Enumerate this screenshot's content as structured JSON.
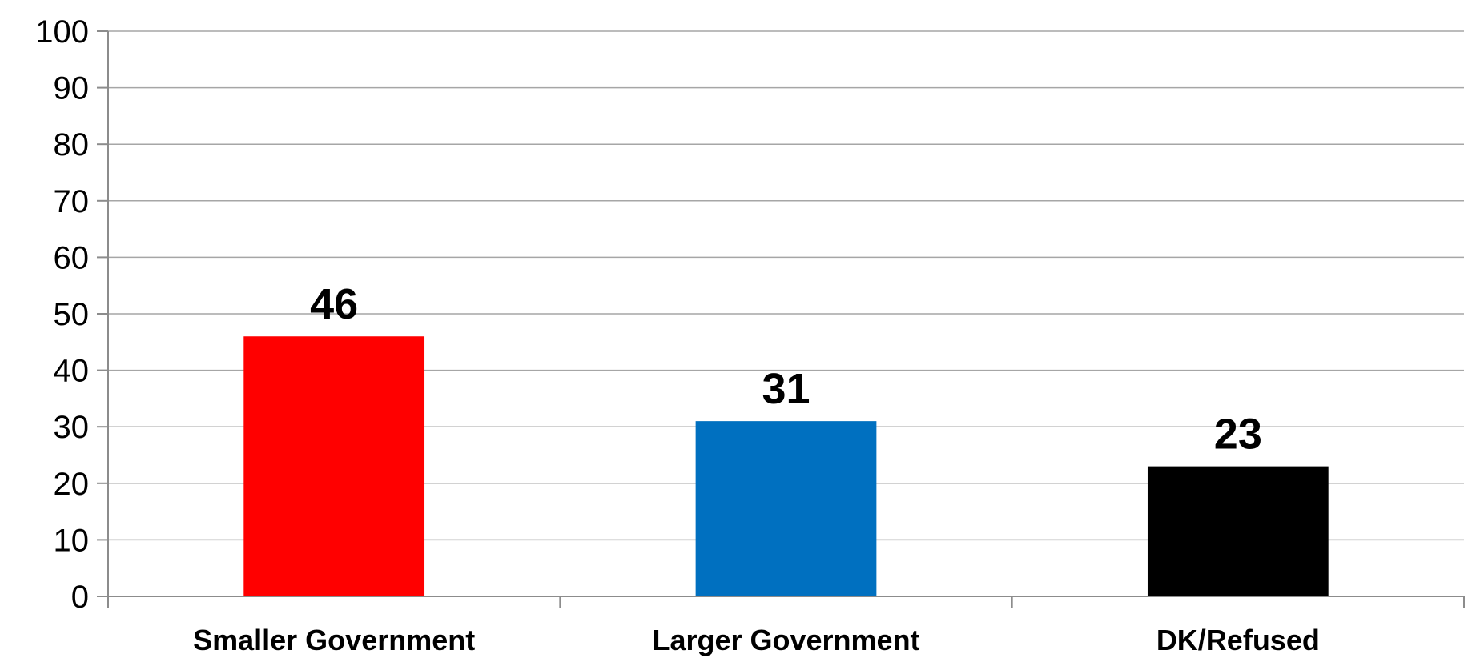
{
  "chart_data": {
    "type": "bar",
    "title": "",
    "xlabel": "",
    "ylabel": "",
    "categories": [
      "Smaller Government",
      "Larger Government",
      "DK/Refused"
    ],
    "values": [
      46,
      31,
      23
    ],
    "data_labels": [
      "46",
      "31",
      "23"
    ],
    "colors": [
      "#ff0000",
      "#0070c0",
      "#000000"
    ],
    "ylim": [
      0,
      100
    ],
    "yticks": [
      0,
      10,
      20,
      30,
      40,
      50,
      60,
      70,
      80,
      90,
      100
    ],
    "ytick_labels": [
      "0",
      "10",
      "20",
      "30",
      "40",
      "50",
      "60",
      "70",
      "80",
      "90",
      "100"
    ],
    "grid": true,
    "legend": "none"
  }
}
